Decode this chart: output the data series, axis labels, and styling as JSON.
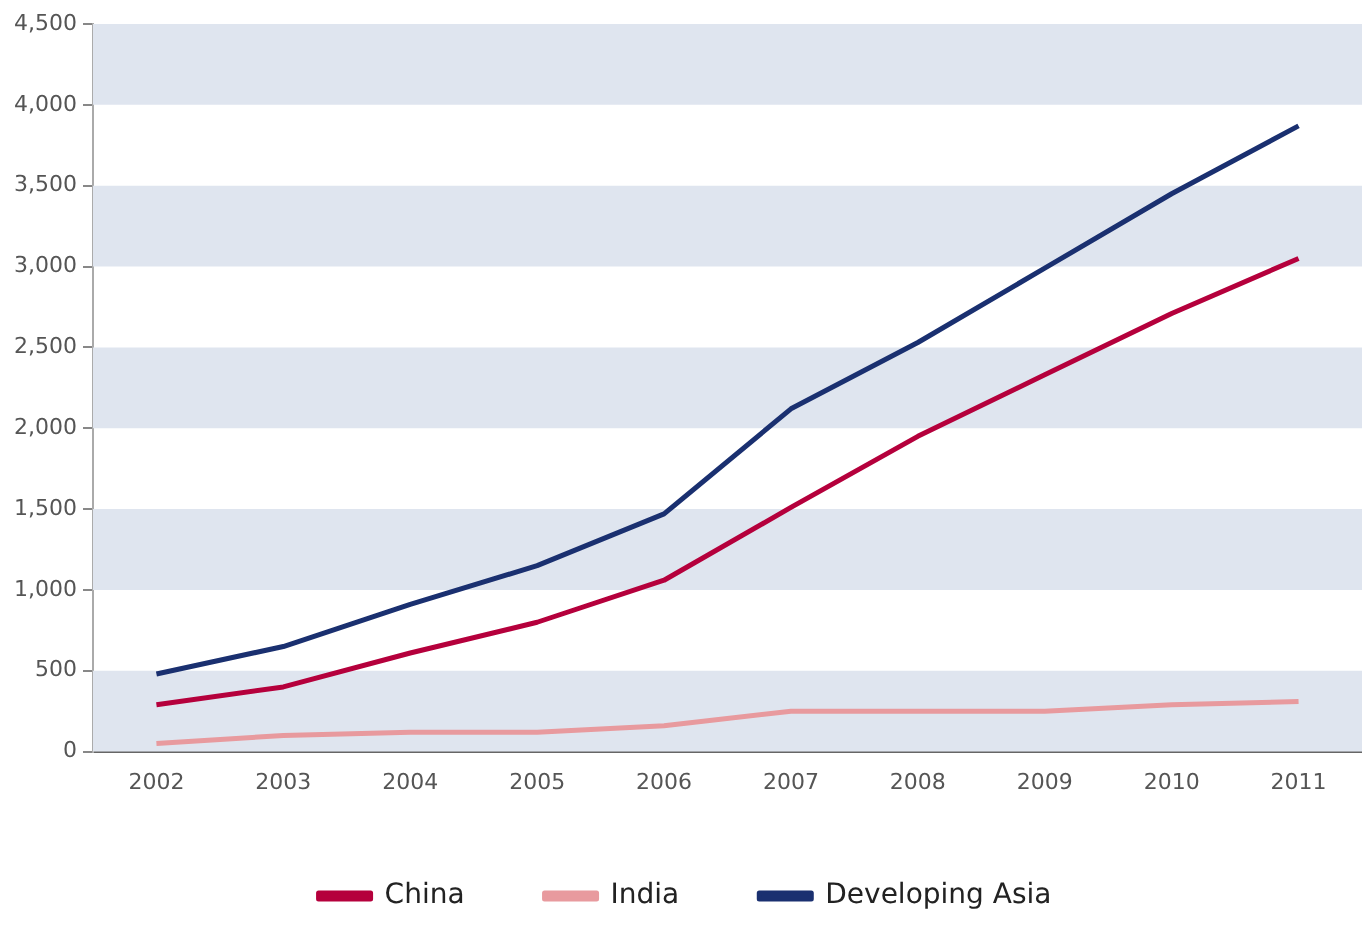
{
  "chart_data": {
    "type": "line",
    "categories": [
      "2002",
      "2003",
      "2004",
      "2005",
      "2006",
      "2007",
      "2008",
      "2009",
      "2010",
      "2011"
    ],
    "series": [
      {
        "name": "China",
        "color": "#b5003c",
        "values": [
          290,
          400,
          610,
          800,
          1060,
          1510,
          1950,
          2330,
          2710,
          3050
        ]
      },
      {
        "name": "India",
        "color": "#e89a9e",
        "values": [
          50,
          100,
          120,
          120,
          160,
          250,
          250,
          250,
          290,
          310
        ]
      },
      {
        "name": "Developing Asia",
        "color": "#1a3070",
        "values": [
          480,
          650,
          910,
          1150,
          1470,
          2120,
          2530,
          2990,
          3450,
          3870
        ]
      }
    ],
    "ylim": [
      0,
      4500
    ],
    "yticks": [
      0,
      500,
      {
        "value": 1000,
        "label": "1,000"
      },
      {
        "value": 1500,
        "label": "1,500"
      },
      {
        "value": 2000,
        "label": "2,000"
      },
      {
        "value": 2500,
        "label": "2,500"
      },
      {
        "value": 3000,
        "label": "3,000"
      },
      {
        "value": 3500,
        "label": "3,500"
      },
      {
        "value": 4000,
        "label": "4,000"
      },
      {
        "value": 4500,
        "label": "4,500"
      }
    ],
    "bands": [
      {
        "axis": "y",
        "from": 0,
        "to": 500,
        "color": "#dfe5ef"
      },
      {
        "axis": "y",
        "from": 1000,
        "to": 1500,
        "color": "#dfe5ef"
      },
      {
        "axis": "y",
        "from": 2000,
        "to": 2500,
        "color": "#dfe5ef"
      },
      {
        "axis": "y",
        "from": 3000,
        "to": 3500,
        "color": "#dfe5ef"
      },
      {
        "axis": "y",
        "from": 4000,
        "to": 4500,
        "color": "#dfe5ef"
      }
    ],
    "legend": "bottom",
    "marker": "none",
    "line_style": "solid"
  }
}
